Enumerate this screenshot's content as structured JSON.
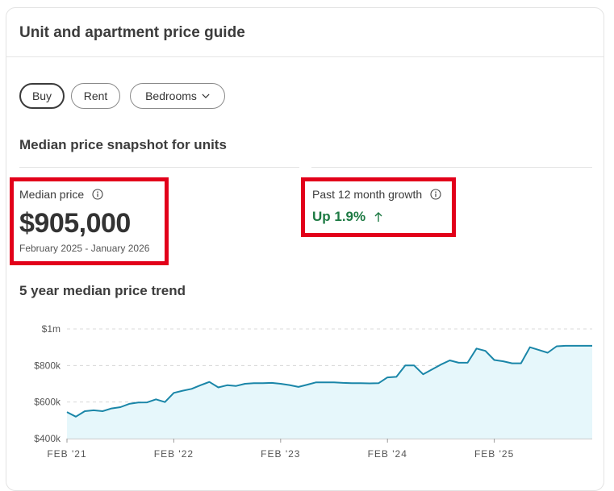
{
  "card": {
    "title": "Unit and apartment price guide"
  },
  "filters": [
    {
      "label": "Buy",
      "active": true
    },
    {
      "label": "Rent",
      "active": false
    },
    {
      "label": "Bedrooms",
      "active": false,
      "icon": "chevron-down-icon"
    }
  ],
  "snapshot": {
    "title": "Median price snapshot for units",
    "median": {
      "label": "Median price",
      "value": "$905,000",
      "range": "February 2025 - January 2026",
      "icon": "info-icon"
    },
    "growth": {
      "label": "Past 12 month growth",
      "value": "Up 1.9%",
      "icon": "info-icon",
      "trend_icon": "arrow-up-icon",
      "color": "#1d7a43"
    },
    "highlight_color": "#e2001a"
  },
  "trend": {
    "title": "5 year median price trend"
  },
  "chart_data": {
    "type": "area",
    "title": "5 year median price trend",
    "y_ticks": [
      "$1m",
      "$800k",
      "$600k",
      "$400k"
    ],
    "ylim": [
      400000,
      1000000
    ],
    "x_ticks": [
      "FEB '21",
      "FEB '22",
      "FEB '23",
      "FEB '24",
      "FEB '25"
    ],
    "grid": true,
    "line_color": "#1a86a8",
    "fill_color": "#e6f7fb",
    "series": [
      {
        "x": [
          0,
          1,
          2,
          3,
          4,
          5,
          6,
          7,
          8,
          9,
          10,
          11,
          12,
          13,
          14,
          15,
          16,
          17,
          18,
          19,
          20,
          21,
          22,
          23,
          24,
          25,
          26,
          27,
          28,
          29,
          30,
          31,
          32,
          33,
          34,
          35,
          36,
          37,
          38,
          39,
          40,
          41,
          42,
          43,
          44,
          45,
          46,
          47,
          48,
          49,
          50,
          51,
          52,
          53,
          54,
          55,
          56,
          57,
          58,
          59
        ],
        "values": [
          545000,
          520000,
          550000,
          555000,
          550000,
          565000,
          572000,
          590000,
          597000,
          598000,
          615000,
          600000,
          650000,
          662000,
          672000,
          692000,
          710000,
          680000,
          692000,
          688000,
          700000,
          703000,
          703000,
          705000,
          700000,
          693000,
          683000,
          695000,
          708000,
          708000,
          708000,
          705000,
          703000,
          703000,
          702000,
          703000,
          735000,
          738000,
          800000,
          800000,
          752000,
          778000,
          805000,
          828000,
          815000,
          815000,
          893000,
          880000,
          830000,
          823000,
          812000,
          812000,
          900000,
          885000,
          870000,
          905000,
          908000,
          908000,
          908000,
          908000
        ]
      }
    ]
  }
}
